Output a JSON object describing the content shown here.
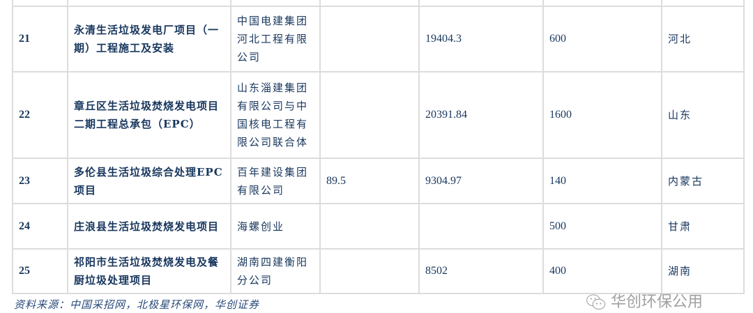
{
  "rows": [
    {
      "no": "21",
      "project": "永清生活垃圾发电厂项目（一期）工程施工及安装",
      "company": "中国电建集团河北工程有限公司",
      "col4": "",
      "amount": "19404.3",
      "capacity": "600",
      "province": "河北"
    },
    {
      "no": "22",
      "project": "章丘区生活垃圾焚烧发电项目二期工程总承包（EPC）",
      "company": "山东淄建集团有限公司与中国核电工程有限公司联合体",
      "col4": "",
      "amount": "20391.84",
      "capacity": "1600",
      "province": "山东"
    },
    {
      "no": "23",
      "project": "多伦县生活垃圾综合处理EPC 项目",
      "company": "百年建设集团有限公司",
      "col4": "89.5",
      "amount": "9304.97",
      "capacity": "140",
      "province": "内蒙古"
    },
    {
      "no": "24",
      "project": "庄浪县生活垃圾焚烧发电项目",
      "company": "海螺创业",
      "col4": "",
      "amount": "",
      "capacity": "500",
      "province": "甘肃"
    },
    {
      "no": "25",
      "project": "祁阳市生活垃圾焚烧发电及餐厨垃圾处理项目",
      "company": "湖南四建衡阳分公司",
      "col4": "",
      "amount": "8502",
      "capacity": "400",
      "province": "湖南"
    }
  ],
  "source": "资料来源：中国采招网，北极星环保网，华创证券",
  "watermark": "华创环保公用"
}
